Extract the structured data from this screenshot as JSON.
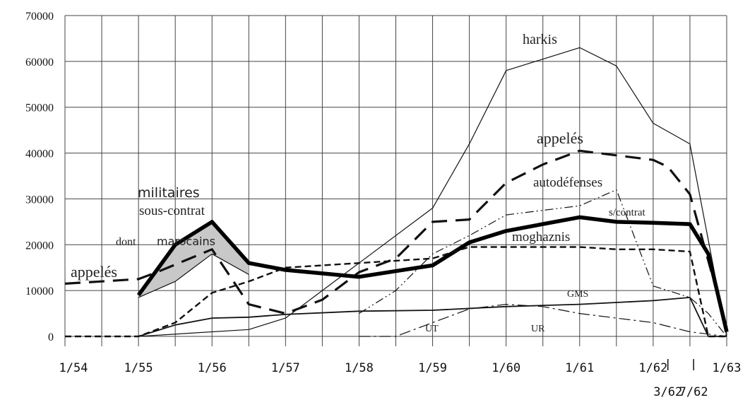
{
  "chart_data": {
    "type": "line",
    "ylim": [
      0,
      70000
    ],
    "y_ticks": [
      0,
      10000,
      20000,
      30000,
      40000,
      50000,
      60000,
      70000
    ],
    "x_labels": [
      "1/54",
      "1/55",
      "1/56",
      "1/57",
      "1/58",
      "1/59",
      "1/60",
      "1/61",
      "1/62",
      "1/63"
    ],
    "x_labels_second_row": [
      "3/62",
      "7/62"
    ],
    "grid": true,
    "series": [
      {
        "id": "harkis",
        "name": "harkis",
        "x": [
          1955.0,
          1956.5,
          1957.0,
          1958.0,
          1959.0,
          1959.5,
          1960.0,
          1961.0,
          1961.5,
          1962.0,
          1962.5,
          1963.0
        ],
        "values": [
          0,
          1500,
          4000,
          16000,
          28000,
          42000,
          58000,
          63000,
          59000,
          46500,
          42000,
          0
        ]
      },
      {
        "id": "appeles",
        "name": "appelés",
        "x": [
          1954.0,
          1955.0,
          1955.25,
          1956.0,
          1956.5,
          1957.0,
          1957.5,
          1958.0,
          1958.5,
          1959.0,
          1959.5,
          1960.0,
          1960.5,
          1961.0,
          1961.5,
          1962.0,
          1962.2,
          1962.5,
          1963.0
        ],
        "values": [
          11500,
          12500,
          14000,
          19000,
          7000,
          5000,
          8000,
          14000,
          17000,
          25000,
          25500,
          33500,
          37500,
          40500,
          39500,
          38500,
          37000,
          31000,
          2000
        ]
      },
      {
        "id": "autodefenses",
        "name": "autodéfenses",
        "x": [
          1958.0,
          1958.5,
          1959.0,
          1959.5,
          1960.0,
          1960.5,
          1961.0,
          1961.5,
          1962.0,
          1962.5,
          1962.75,
          1963.0
        ],
        "values": [
          5000,
          10000,
          18000,
          22000,
          26500,
          27500,
          28500,
          32000,
          11000,
          8500,
          5000,
          0
        ]
      },
      {
        "id": "s_contrat",
        "name": "s/contrat",
        "x": [
          1955.0,
          1955.5,
          1956.0,
          1956.5,
          1957.0,
          1958.0,
          1959.0,
          1959.5,
          1960.0,
          1961.0,
          1961.5,
          1962.0,
          1962.5,
          1962.75,
          1963.0
        ],
        "values": [
          9000,
          20000,
          25000,
          16000,
          14500,
          13000,
          15500,
          20500,
          23000,
          26000,
          25000,
          24800,
          24500,
          18000,
          1000
        ]
      },
      {
        "id": "moghaznis",
        "name": "moghaznis",
        "x": [
          1954.0,
          1955.0,
          1955.5,
          1956.0,
          1956.5,
          1957.0,
          1957.5,
          1958.0,
          1959.0,
          1959.5,
          1960.0,
          1961.0,
          1961.5,
          1962.0,
          1962.5,
          1962.75,
          1963.0
        ],
        "values": [
          0,
          0,
          3000,
          9500,
          12000,
          15000,
          15500,
          16000,
          17000,
          19500,
          19500,
          19500,
          19000,
          19000,
          18500,
          0,
          0
        ]
      },
      {
        "id": "gms",
        "name": "GMS",
        "x": [
          1955.0,
          1955.5,
          1956.0,
          1956.5,
          1957.0,
          1958.0,
          1959.0,
          1960.0,
          1961.0,
          1962.0,
          1962.5,
          1962.75,
          1963.0
        ],
        "values": [
          0,
          2500,
          4000,
          4200,
          4800,
          5500,
          5700,
          6500,
          7000,
          7800,
          8500,
          0,
          0
        ]
      },
      {
        "id": "ut",
        "name": "UT",
        "x": [
          1958.0,
          1958.5,
          1959.0,
          1959.5,
          1960.0,
          1960.5,
          1961.0,
          1961.5,
          1962.0,
          1962.5,
          1963.0
        ],
        "values": [
          0,
          0,
          3000,
          6000,
          7000,
          6500,
          5000,
          4000,
          3000,
          1000,
          0
        ]
      },
      {
        "id": "marocains",
        "name": "marocains",
        "x": [
          1955.0,
          1955.5,
          1956.0,
          1956.5
        ],
        "values": [
          8500,
          12000,
          18000,
          13500
        ]
      }
    ],
    "annotations": [
      "harkis",
      "appelés",
      "autodéfenses",
      "militaires",
      "sous-contrat",
      "dont",
      "marocains",
      "s/contrat",
      "moghaznis",
      "appelés",
      "GMS",
      "UT",
      "UR"
    ]
  }
}
